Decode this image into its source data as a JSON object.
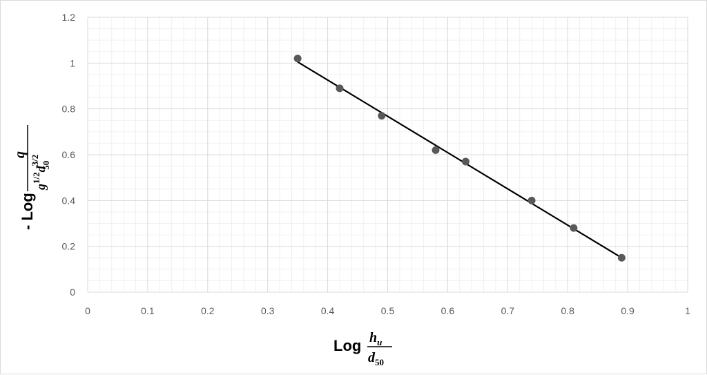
{
  "chart_data": {
    "type": "scatter",
    "x": [
      0.35,
      0.42,
      0.49,
      0.58,
      0.63,
      0.74,
      0.81,
      0.89
    ],
    "y": [
      1.02,
      0.89,
      0.77,
      0.62,
      0.57,
      0.4,
      0.28,
      0.15
    ],
    "trendline": {
      "type": "linear",
      "x": [
        0.35,
        0.89
      ],
      "y": [
        1.005,
        0.15
      ]
    },
    "xlim": [
      0,
      1
    ],
    "ylim": [
      0,
      1.2
    ],
    "xticks": [
      "0",
      "0.1",
      "0.2",
      "0.3",
      "0.4",
      "0.5",
      "0.6",
      "0.7",
      "0.8",
      "0.9",
      "1"
    ],
    "yticks": [
      "0",
      "0.2",
      "0.4",
      "0.6",
      "0.8",
      "1",
      "1.2"
    ],
    "xlabel": {
      "prefix": "Log",
      "numerator": "h",
      "numerator_sub": "u",
      "denominator": "d",
      "denominator_sub": "50"
    },
    "ylabel": {
      "prefix": "- Log",
      "numerator": "q",
      "den_g": "g",
      "den_g_exp": "1/2",
      "den_d": "d",
      "den_d_sub": "50",
      "den_d_exp": "3/2"
    },
    "grid": true,
    "legend": "none",
    "colors": {
      "marker": "#595959",
      "trendline": "#000000",
      "major_grid": "#d9d9d9",
      "minor_grid": "#f0f0f0"
    }
  }
}
